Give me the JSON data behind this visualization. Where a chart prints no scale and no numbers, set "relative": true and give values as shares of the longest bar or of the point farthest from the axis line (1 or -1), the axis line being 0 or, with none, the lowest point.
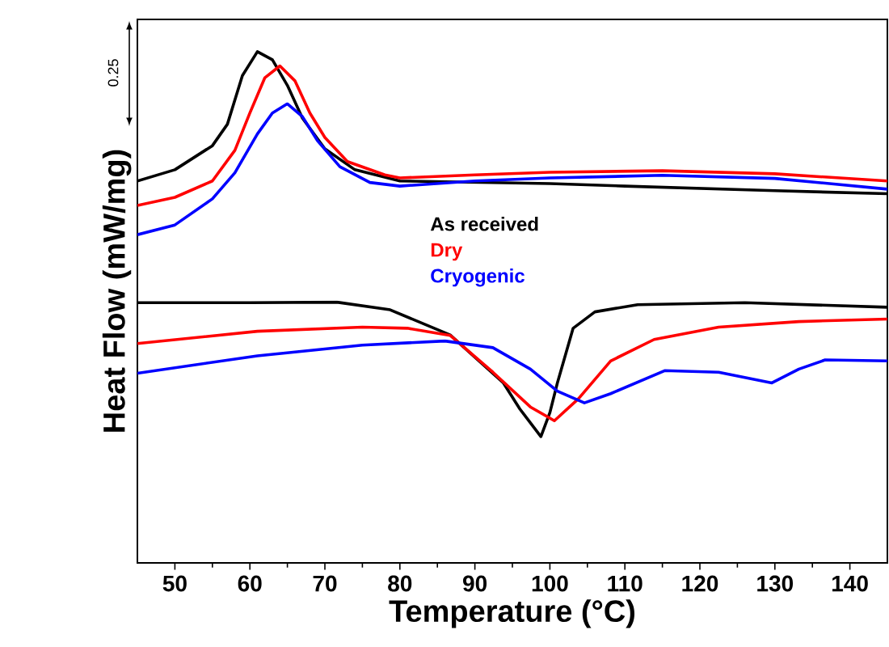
{
  "chart_data": {
    "type": "line",
    "xlabel": "Temperature (°C)",
    "ylabel": "Heat Flow (mW/mg)",
    "relative": true,
    "xlim": [
      45,
      145
    ],
    "xticks": [
      50,
      60,
      70,
      80,
      90,
      100,
      110,
      120,
      130,
      140
    ],
    "legend": "center",
    "annotations": [
      "0.25"
    ],
    "series": [
      {
        "name": "As received",
        "color": "#000000",
        "x": [
          45,
          50,
          55,
          57,
          59,
          61,
          63,
          65,
          67,
          70,
          74,
          80,
          100,
          110,
          130,
          145
        ],
        "values": [
          0.747,
          0.769,
          0.816,
          0.858,
          0.953,
          1.0,
          0.984,
          0.934,
          0.87,
          0.81,
          0.769,
          0.747,
          0.742,
          0.737,
          0.728,
          0.722
        ]
      },
      {
        "name": "Dry",
        "color": "#ff0000",
        "x": [
          45,
          50,
          55,
          58,
          60,
          62,
          64,
          66,
          68,
          70,
          73,
          78,
          80,
          90,
          100,
          115,
          130,
          145
        ],
        "values": [
          0.699,
          0.715,
          0.747,
          0.807,
          0.88,
          0.949,
          0.972,
          0.943,
          0.88,
          0.832,
          0.785,
          0.759,
          0.753,
          0.759,
          0.764,
          0.767,
          0.761,
          0.747
        ]
      },
      {
        "name": "Cryogenic",
        "color": "#0000ff",
        "x": [
          45,
          50,
          55,
          58,
          61,
          63,
          65,
          67,
          69,
          72,
          76,
          80,
          90,
          100,
          115,
          130,
          145
        ],
        "values": [
          0.642,
          0.661,
          0.712,
          0.763,
          0.839,
          0.88,
          0.898,
          0.873,
          0.826,
          0.775,
          0.744,
          0.737,
          0.747,
          0.753,
          0.758,
          0.752,
          0.731
        ]
      },
      {
        "color": "#000000",
        "x": [
          45,
          60,
          71.6,
          78.7,
          86.7,
          93.8,
          96,
          98.8,
          100,
          101,
          103.1,
          106,
          111.7,
          126,
          145
        ],
        "values": [
          0.509,
          0.509,
          0.51,
          0.495,
          0.446,
          0.352,
          0.301,
          0.247,
          0.294,
          0.352,
          0.459,
          0.491,
          0.505,
          0.509,
          0.5
        ]
      },
      {
        "color": "#ff0000",
        "x": [
          45,
          61,
          75,
          81,
          86.7,
          92.4,
          97.4,
          100.6,
          103.8,
          108.1,
          113.9,
          122.5,
          133.2,
          145
        ],
        "values": [
          0.429,
          0.453,
          0.461,
          0.459,
          0.445,
          0.373,
          0.305,
          0.278,
          0.321,
          0.395,
          0.437,
          0.461,
          0.472,
          0.477
        ]
      },
      {
        "color": "#0000ff",
        "x": [
          45,
          61,
          75,
          86,
          92.4,
          97.4,
          101,
          104.6,
          108.1,
          115.3,
          122.5,
          129.6,
          133.2,
          136.7,
          145
        ],
        "values": [
          0.371,
          0.405,
          0.426,
          0.434,
          0.421,
          0.379,
          0.336,
          0.313,
          0.331,
          0.376,
          0.373,
          0.352,
          0.379,
          0.397,
          0.395
        ]
      }
    ]
  }
}
